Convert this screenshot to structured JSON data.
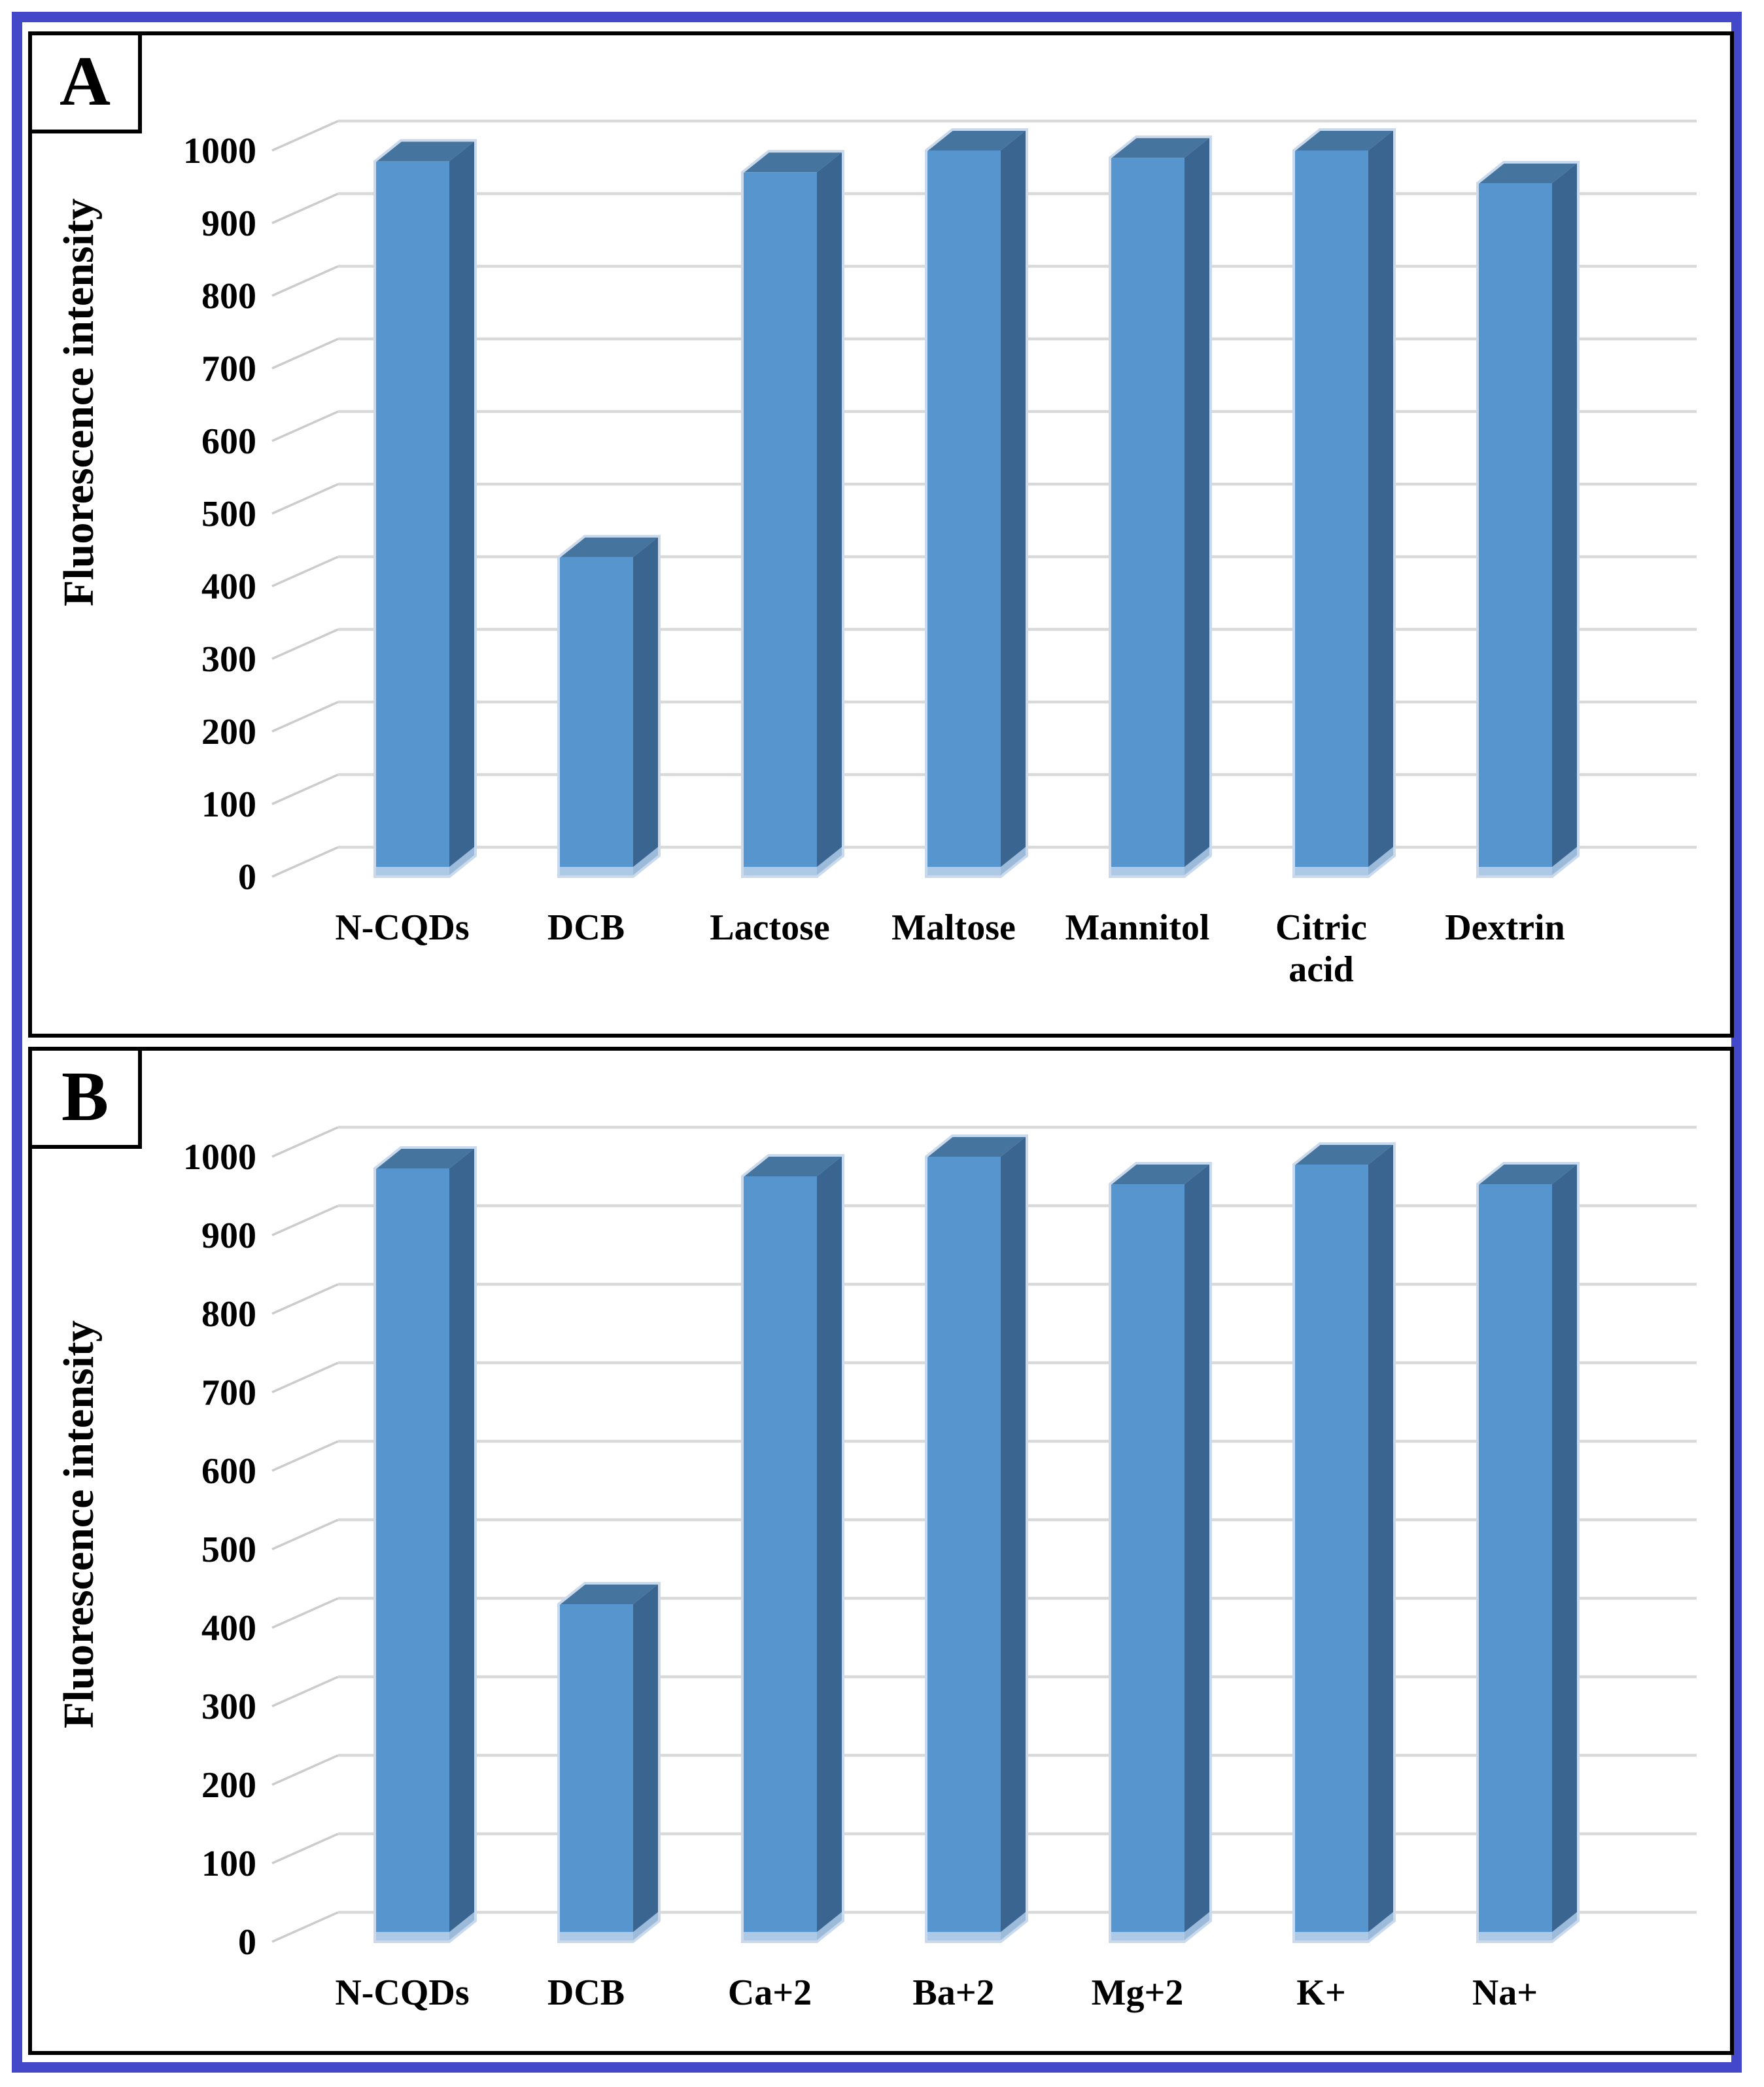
{
  "figure": {
    "panel_a_label": "A",
    "panel_b_label": "B"
  },
  "colors": {
    "frame_blue": "#4348cb",
    "panel_border": "#000000",
    "bar_front": "#5795cf",
    "bar_top": "#45749f",
    "bar_side": "#3a6590",
    "bar_edge_highlight": "#cad9eb",
    "bar_bottom_cap": "#aec9e6",
    "gridline": "#d9d9d9",
    "depth_stub": "#cccccc",
    "text": "#000000"
  },
  "chart_data": [
    {
      "type": "bar",
      "style": "3d-column",
      "panel": "A",
      "title": "",
      "xlabel": "",
      "ylabel": "Fluorescence intensity",
      "categories": [
        "N-CQDs",
        "DCB",
        "Lactose",
        "Maltose",
        "Mannitol",
        "Citric acid",
        "Dextrin"
      ],
      "values": [
        985,
        440,
        970,
        1000,
        990,
        1000,
        955
      ],
      "ylim": [
        0,
        1000
      ],
      "ytick_step": 100,
      "yticks": [
        0,
        100,
        200,
        300,
        400,
        500,
        600,
        700,
        800,
        900,
        1000
      ],
      "grid": true,
      "legend_position": "none"
    },
    {
      "type": "bar",
      "style": "3d-column",
      "panel": "B",
      "title": "",
      "xlabel": "",
      "ylabel": "Fluorescence intensity",
      "categories": [
        "N-CQDs",
        "DCB",
        "Ca+2",
        "Ba+2",
        "Mg+2",
        "K+",
        "Na+"
      ],
      "values": [
        985,
        430,
        975,
        1000,
        965,
        990,
        965
      ],
      "ylim": [
        0,
        1000
      ],
      "ytick_step": 100,
      "yticks": [
        0,
        100,
        200,
        300,
        400,
        500,
        600,
        700,
        800,
        900,
        1000
      ],
      "grid": true,
      "legend_position": "none"
    }
  ]
}
